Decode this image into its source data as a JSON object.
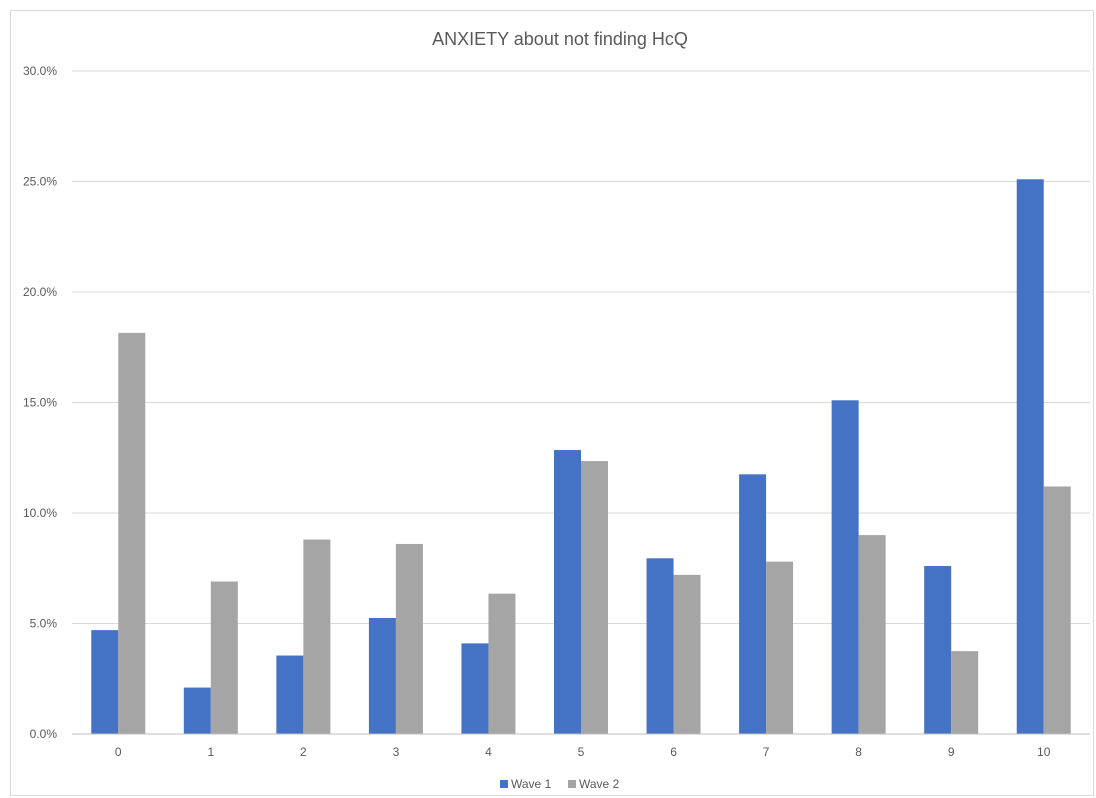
{
  "chart_data": {
    "type": "bar",
    "title": "ANXIETY about not finding HcQ",
    "xlabel": "",
    "ylabel": "",
    "categories": [
      "0",
      "1",
      "2",
      "3",
      "4",
      "5",
      "6",
      "7",
      "8",
      "9",
      "10"
    ],
    "series": [
      {
        "name": "Wave 1",
        "color": "#4472c4",
        "values": [
          4.7,
          2.1,
          3.55,
          5.25,
          4.1,
          12.85,
          7.95,
          11.75,
          15.1,
          7.6,
          25.1
        ]
      },
      {
        "name": "Wave 2",
        "color": "#a5a5a5",
        "values": [
          18.15,
          6.9,
          8.8,
          8.6,
          6.35,
          12.35,
          7.2,
          7.8,
          9.0,
          3.75,
          11.2
        ]
      }
    ],
    "ylim": [
      0,
      30
    ],
    "yticks": [
      "0.0%",
      "5.0%",
      "10.0%",
      "15.0%",
      "20.0%",
      "25.0%",
      "30.0%"
    ],
    "grid": true,
    "legend_position": "bottom"
  }
}
